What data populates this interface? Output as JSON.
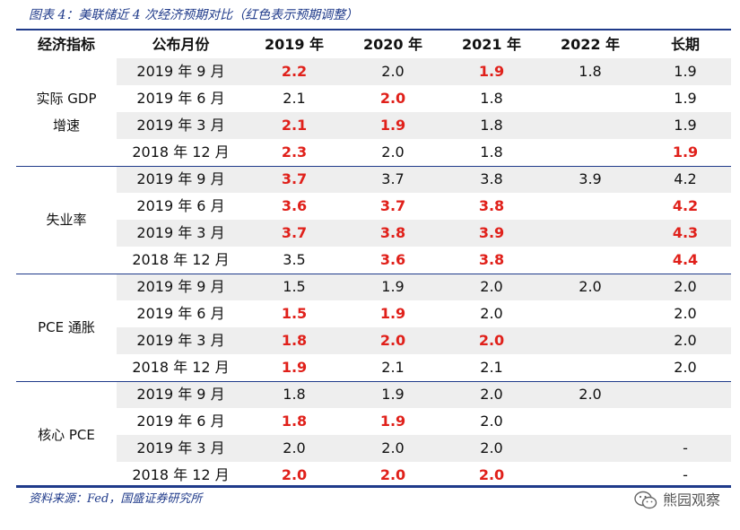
{
  "title": "图表 4：美联储近 4 次经济预期对比（红色表示预期调整）",
  "colors": {
    "accent": "#1f3a8a",
    "highlight": "#e0201a",
    "shade": "#eeeeee"
  },
  "headers": [
    "经济指标",
    "公布月份",
    "2019 年",
    "2020 年",
    "2021 年",
    "2022 年",
    "长期"
  ],
  "groups": [
    {
      "label_lines": [
        "实际 GDP",
        "增速"
      ],
      "rows": [
        {
          "month": "2019 年 9 月",
          "values": [
            "2.2",
            "2.0",
            "1.9",
            "1.8",
            "1.9"
          ],
          "highlight": [
            true,
            false,
            true,
            false,
            false
          ]
        },
        {
          "month": "2019 年 6 月",
          "values": [
            "2.1",
            "2.0",
            "1.8",
            "",
            "1.9"
          ],
          "highlight": [
            false,
            true,
            false,
            false,
            false
          ]
        },
        {
          "month": "2019 年 3 月",
          "values": [
            "2.1",
            "1.9",
            "1.8",
            "",
            "1.9"
          ],
          "highlight": [
            true,
            true,
            false,
            false,
            false
          ]
        },
        {
          "month": "2018 年 12 月",
          "values": [
            "2.3",
            "2.0",
            "1.8",
            "",
            "1.9"
          ],
          "highlight": [
            true,
            false,
            false,
            false,
            true
          ]
        }
      ]
    },
    {
      "label_lines": [
        "失业率"
      ],
      "rows": [
        {
          "month": "2019 年 9 月",
          "values": [
            "3.7",
            "3.7",
            "3.8",
            "3.9",
            "4.2"
          ],
          "highlight": [
            true,
            false,
            false,
            false,
            false
          ]
        },
        {
          "month": "2019 年 6 月",
          "values": [
            "3.6",
            "3.7",
            "3.8",
            "",
            "4.2"
          ],
          "highlight": [
            true,
            true,
            true,
            false,
            true
          ]
        },
        {
          "month": "2019 年 3 月",
          "values": [
            "3.7",
            "3.8",
            "3.9",
            "",
            "4.3"
          ],
          "highlight": [
            true,
            true,
            true,
            false,
            true
          ]
        },
        {
          "month": "2018 年 12 月",
          "values": [
            "3.5",
            "3.6",
            "3.8",
            "",
            "4.4"
          ],
          "highlight": [
            false,
            true,
            true,
            false,
            true
          ]
        }
      ]
    },
    {
      "label_lines": [
        "PCE 通胀"
      ],
      "rows": [
        {
          "month": "2019 年 9 月",
          "values": [
            "1.5",
            "1.9",
            "2.0",
            "2.0",
            "2.0"
          ],
          "highlight": [
            false,
            false,
            false,
            false,
            false
          ]
        },
        {
          "month": "2019 年 6 月",
          "values": [
            "1.5",
            "1.9",
            "2.0",
            "",
            "2.0"
          ],
          "highlight": [
            true,
            true,
            false,
            false,
            false
          ]
        },
        {
          "month": "2019 年 3 月",
          "values": [
            "1.8",
            "2.0",
            "2.0",
            "",
            "2.0"
          ],
          "highlight": [
            true,
            true,
            true,
            false,
            false
          ]
        },
        {
          "month": "2018 年 12 月",
          "values": [
            "1.9",
            "2.1",
            "2.1",
            "",
            "2.0"
          ],
          "highlight": [
            true,
            false,
            false,
            false,
            false
          ]
        }
      ]
    },
    {
      "label_lines": [
        "核心 PCE"
      ],
      "rows": [
        {
          "month": "2019 年 9 月",
          "values": [
            "1.8",
            "1.9",
            "2.0",
            "2.0",
            ""
          ],
          "highlight": [
            false,
            false,
            false,
            false,
            false
          ]
        },
        {
          "month": "2019 年 6 月",
          "values": [
            "1.8",
            "1.9",
            "2.0",
            "",
            ""
          ],
          "highlight": [
            true,
            true,
            false,
            false,
            false
          ]
        },
        {
          "month": "2019 年 3 月",
          "values": [
            "2.0",
            "2.0",
            "2.0",
            "",
            "-"
          ],
          "highlight": [
            false,
            false,
            false,
            false,
            false
          ]
        },
        {
          "month": "2018 年 12 月",
          "values": [
            "2.0",
            "2.0",
            "2.0",
            "",
            "-"
          ],
          "highlight": [
            true,
            true,
            true,
            false,
            false
          ]
        }
      ]
    }
  ],
  "source": "资料来源：Fed，国盛证券研究所",
  "watermark": {
    "icon": "wechat-icon",
    "text": "熊园观察"
  }
}
